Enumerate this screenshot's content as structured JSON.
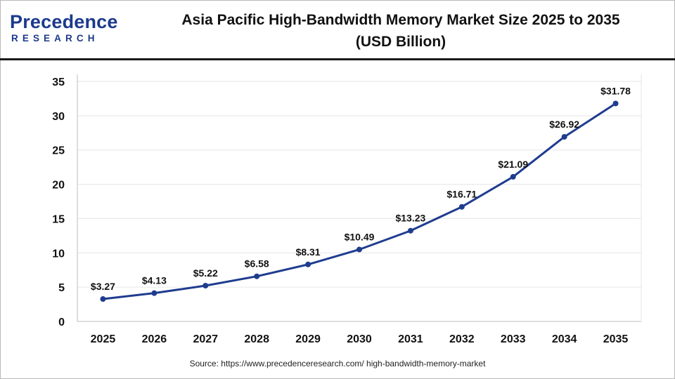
{
  "brand": {
    "logo_word": "Precedence",
    "logo_sub": "RESEARCH",
    "logo_color": "#1b3a8c"
  },
  "header": {
    "title_line1": "Asia Pacific High-Bandwidth Memory Market Size 2025 to 2035",
    "title_line2": "(USD Billion)"
  },
  "chart_data": {
    "type": "line",
    "title": "Asia Pacific High-Bandwidth Memory Market Size 2025 to 2035 (USD Billion)",
    "xlabel": "",
    "ylabel": "",
    "categories": [
      "2025",
      "2026",
      "2027",
      "2028",
      "2029",
      "2030",
      "2031",
      "2032",
      "2033",
      "2034",
      "2035"
    ],
    "series": [
      {
        "values": [
          3.27,
          4.13,
          5.22,
          6.58,
          8.31,
          10.49,
          13.23,
          16.71,
          21.09,
          26.92,
          31.78
        ],
        "labels": [
          "$3.27",
          "$4.13",
          "$5.22",
          "$6.58",
          "$8.31",
          "$10.49",
          "$13.23",
          "$16.71",
          "$21.09",
          "$26.92",
          "$31.78"
        ],
        "color": "#1f3c8f"
      }
    ],
    "ylim": [
      0,
      35
    ],
    "yticks": [
      "0",
      "5",
      "10",
      "15",
      "20",
      "25",
      "30",
      "35"
    ],
    "grid": true,
    "legend": "none"
  },
  "footer": {
    "source": "Source: https://www.precedenceresearch.com/ high-bandwidth-memory-market"
  }
}
